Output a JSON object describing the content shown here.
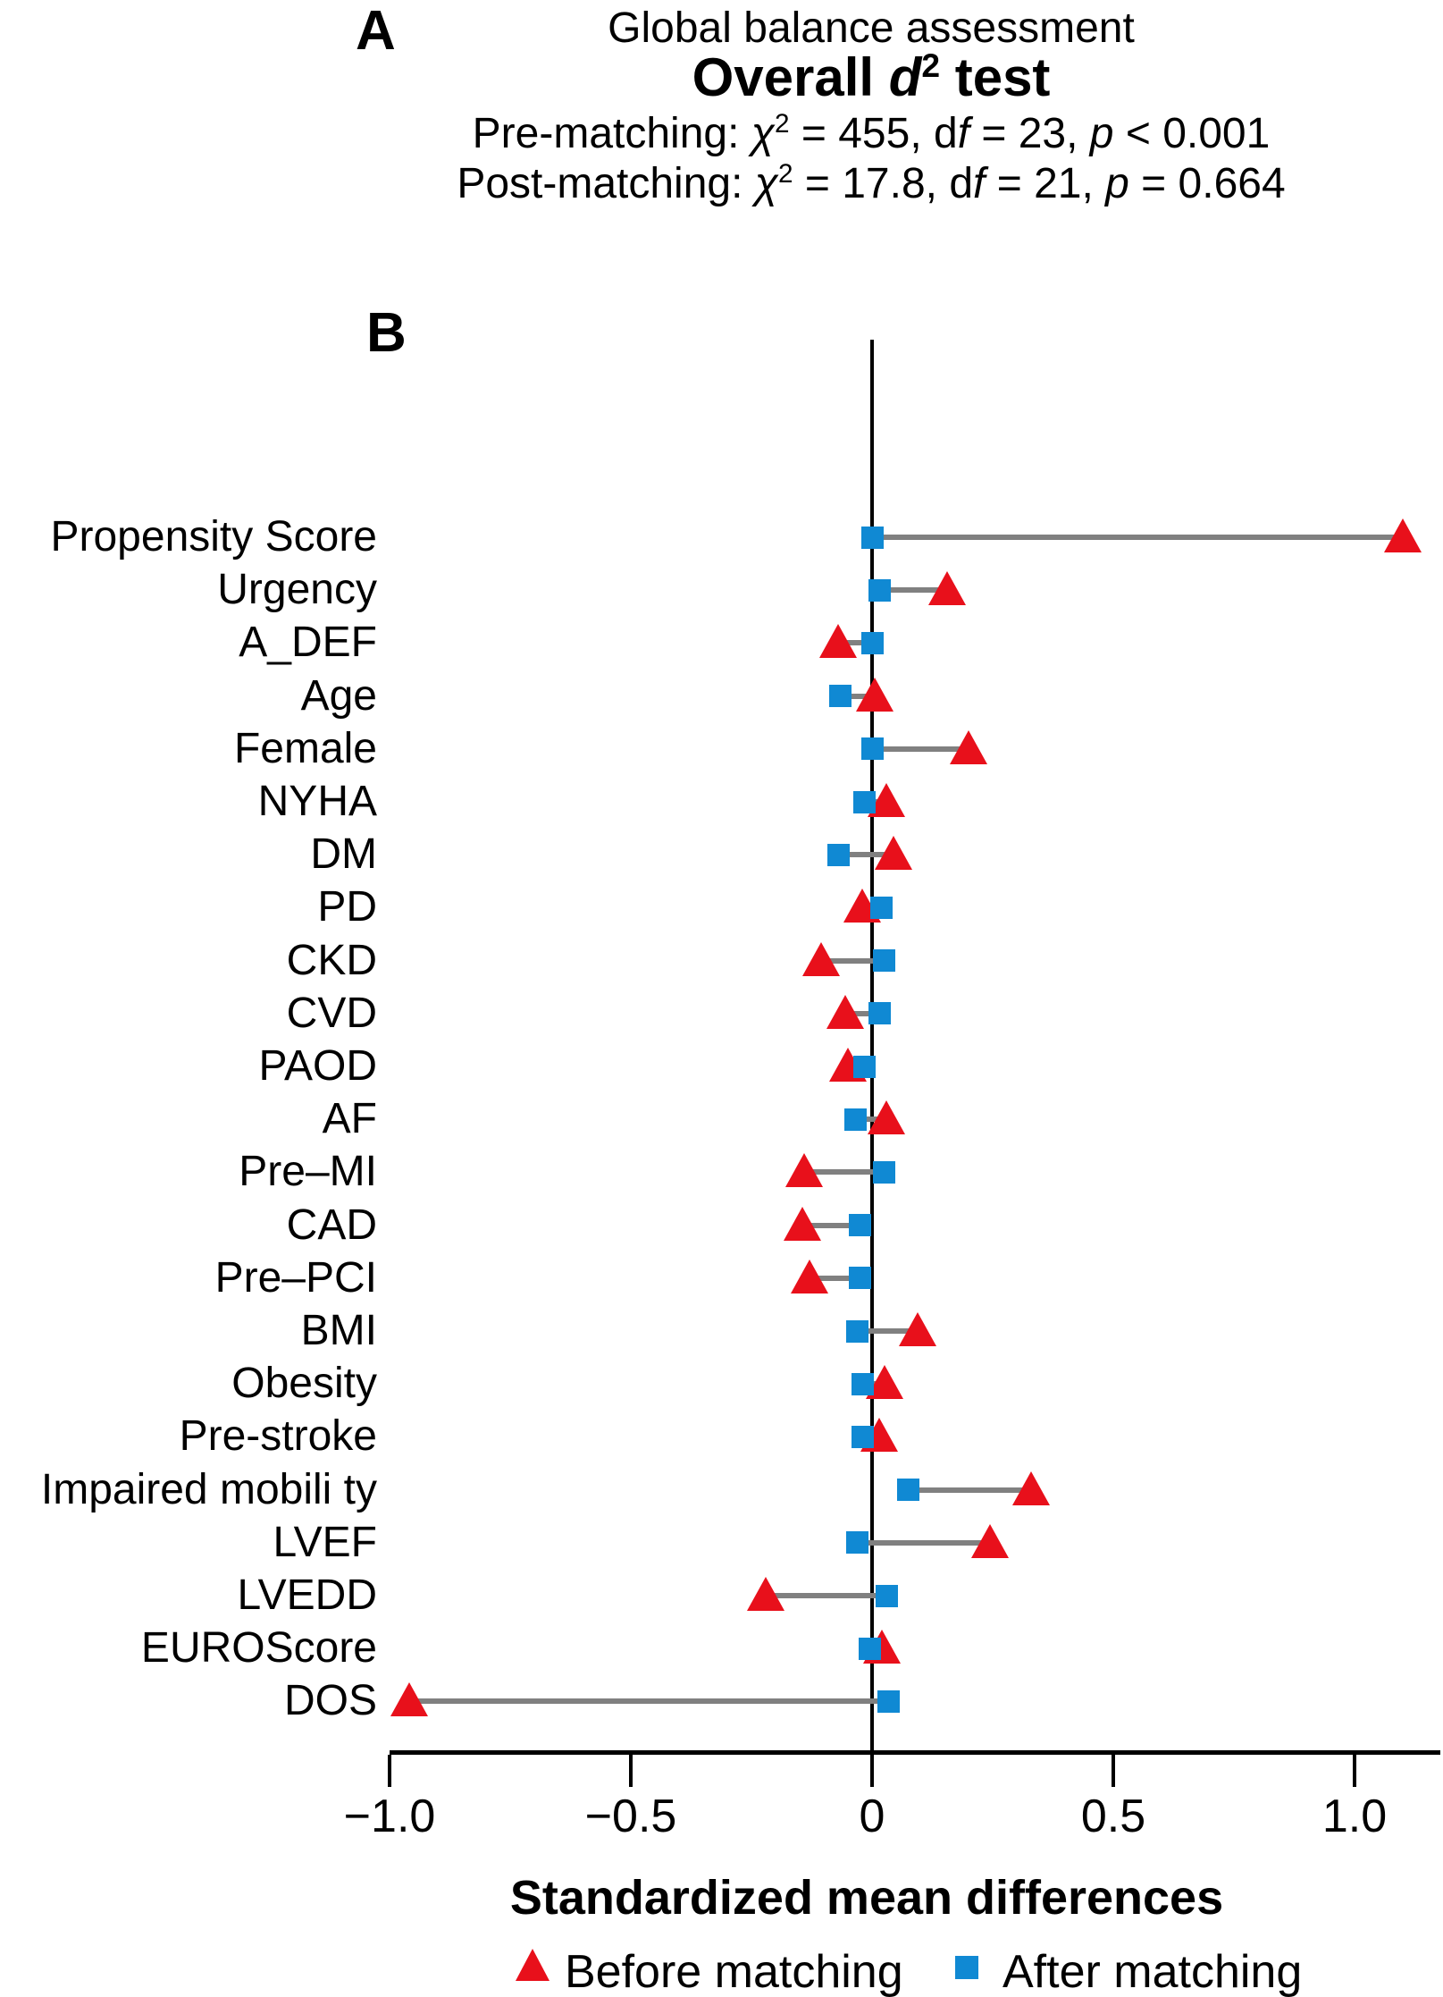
{
  "panel_a": {
    "label": "A",
    "title": "Global balance assessment",
    "overall_text": "Overall d2 test",
    "overall_rich": [
      {
        "t": "Overall "
      },
      {
        "t": "d",
        "i": true
      },
      {
        "t": "2",
        "sup": true
      },
      {
        "t": " test"
      }
    ],
    "pre_text": "Pre-matching: χ2 = 455, df = 23, p < 0.001",
    "pre_rich": [
      {
        "t": "Pre-matching: "
      },
      {
        "t": "χ",
        "i": true
      },
      {
        "t": "2",
        "sup": true
      },
      {
        "t": " = 455, d"
      },
      {
        "t": "f",
        "i": true
      },
      {
        "t": " = 23, "
      },
      {
        "t": "p",
        "i": true
      },
      {
        "t": " < 0.001"
      }
    ],
    "post_text": "Post-matching: χ2 = 17.8, df = 21, p = 0.664",
    "post_rich": [
      {
        "t": "Post-matching: "
      },
      {
        "t": "χ",
        "i": true
      },
      {
        "t": "2",
        "sup": true
      },
      {
        "t": " = 17.8, d"
      },
      {
        "t": "f",
        "i": true
      },
      {
        "t": " = 21, "
      },
      {
        "t": "p",
        "i": true
      },
      {
        "t": " = 0.664"
      }
    ]
  },
  "panel_b": {
    "label": "B"
  },
  "chart_data": {
    "type": "scatter",
    "title": "Global balance assessment",
    "xlabel": "Standardized mean differences",
    "xlim": [
      -1.0,
      1.18
    ],
    "x_ticks": [
      -1.0,
      -0.5,
      0,
      0.5,
      1.0
    ],
    "x_tick_labels": [
      "−1.0",
      "−0.5",
      "0",
      "0.5",
      "1.0"
    ],
    "grid": false,
    "legend_position": "bottom",
    "zero_line": true,
    "categories": [
      "Propensity Score",
      "Urgency",
      "A_DEF",
      "Age",
      "Female",
      "NYHA",
      "DM",
      "PD",
      "CKD",
      "CVD",
      "PAOD",
      "AF",
      "Pre–MI",
      "CAD",
      "Pre–PCI",
      "BMI",
      "Obesity",
      "Pre-stroke",
      "Impaired mobili ty",
      "LVEF",
      "LVEDD",
      "EUROScore",
      "DOS"
    ],
    "series": [
      {
        "name": "Before matching",
        "marker": "triangle",
        "color": "#e8101b",
        "values": [
          1.1,
          0.155,
          -0.07,
          0.005,
          0.2,
          0.03,
          0.045,
          -0.02,
          -0.105,
          -0.055,
          -0.05,
          0.03,
          -0.14,
          -0.145,
          -0.13,
          0.095,
          0.025,
          0.015,
          0.33,
          0.245,
          -0.22,
          0.02,
          -0.96
        ]
      },
      {
        "name": "After matching",
        "marker": "square",
        "color": "#1089d3",
        "values": [
          0,
          0.015,
          0,
          -0.065,
          0,
          -0.015,
          -0.07,
          0.02,
          0.025,
          0.015,
          -0.015,
          -0.035,
          0.025,
          -0.025,
          -0.025,
          -0.03,
          -0.02,
          -0.02,
          0.075,
          -0.03,
          0.03,
          -0.005,
          0.035
        ]
      }
    ],
    "connector_color": "#808080",
    "axis_color": "#000000"
  },
  "legend": {
    "before_label": "Before matching",
    "after_label": "After matching"
  }
}
